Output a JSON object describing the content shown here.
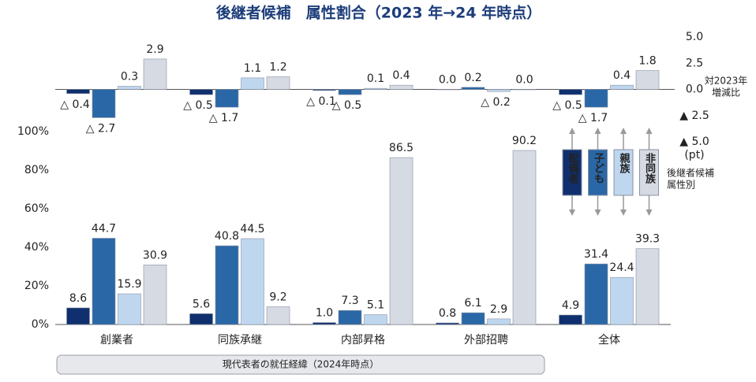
{
  "chart_data": {
    "type": "bar",
    "title": "後継者候補　属性割合（2023 年→24 年時点）",
    "categories": [
      "創業者",
      "同族承継",
      "内部昇格",
      "外部招聘",
      "全体"
    ],
    "xlabel": "現代表者の就任経緯（2024年時点）",
    "legend_title": [
      "後継者候補",
      "属性別"
    ],
    "ylim": [
      0,
      100
    ],
    "yticks": [
      {
        "value": 0,
        "label": "0%"
      },
      {
        "value": 20,
        "label": "20%"
      },
      {
        "value": 40,
        "label": "40%"
      },
      {
        "value": 60,
        "label": "60%"
      },
      {
        "value": 80,
        "label": "80%"
      },
      {
        "value": 100,
        "label": "100%"
      }
    ],
    "y2lim": [
      -5,
      5
    ],
    "y2ticks": [
      {
        "value": 5,
        "label": "5.0"
      },
      {
        "value": 2.5,
        "label": "2.5"
      },
      {
        "value": 0,
        "label": "0.0"
      },
      {
        "value": -2.5,
        "label": "▲ 2.5"
      },
      {
        "value": -5,
        "label": "▲ 5.0"
      }
    ],
    "y2label": [
      "対2023年",
      "増減比"
    ],
    "y2unit": "(pt)",
    "series": [
      {
        "name": "配偶者",
        "color": "#0f2f6e",
        "values": [
          8.6,
          5.6,
          1.0,
          0.8,
          4.9
        ],
        "value_labels": [
          "8.6",
          "5.6",
          "1.0",
          "0.8",
          "4.9"
        ],
        "change": [
          -0.4,
          -0.5,
          -0.1,
          0.0,
          -0.5
        ],
        "change_labels": [
          "△ 0.4",
          "△ 0.5",
          "△ 0.1",
          "0.0",
          "△ 0.5"
        ]
      },
      {
        "name": "子ども",
        "color": "#2a67a6",
        "values": [
          44.7,
          40.8,
          7.3,
          6.1,
          31.4
        ],
        "value_labels": [
          "44.7",
          "40.8",
          "7.3",
          "6.1",
          "31.4"
        ],
        "change": [
          -2.7,
          -1.7,
          -0.5,
          0.2,
          -1.7
        ],
        "change_labels": [
          "△ 2.7",
          "△ 1.7",
          "△ 0.5",
          "0.2",
          "△ 1.7"
        ]
      },
      {
        "name": "親族",
        "color": "#bfd6ef",
        "values": [
          15.9,
          44.5,
          5.1,
          2.9,
          24.4
        ],
        "value_labels": [
          "15.9",
          "44.5",
          "5.1",
          "2.9",
          "24.4"
        ],
        "change": [
          0.3,
          1.1,
          0.1,
          -0.2,
          0.4
        ],
        "change_labels": [
          "0.3",
          "1.1",
          "0.1",
          "△ 0.2",
          "0.4"
        ]
      },
      {
        "name": "非同族",
        "color": "#d5dae3",
        "values": [
          30.9,
          9.2,
          86.5,
          90.2,
          39.3
        ],
        "value_labels": [
          "30.9",
          "9.2",
          "86.5",
          "90.2",
          "39.3"
        ],
        "change": [
          2.9,
          1.2,
          0.4,
          0.0,
          1.8
        ],
        "change_labels": [
          "2.9",
          "1.2",
          "0.4",
          "0.0",
          "1.8"
        ]
      }
    ]
  }
}
